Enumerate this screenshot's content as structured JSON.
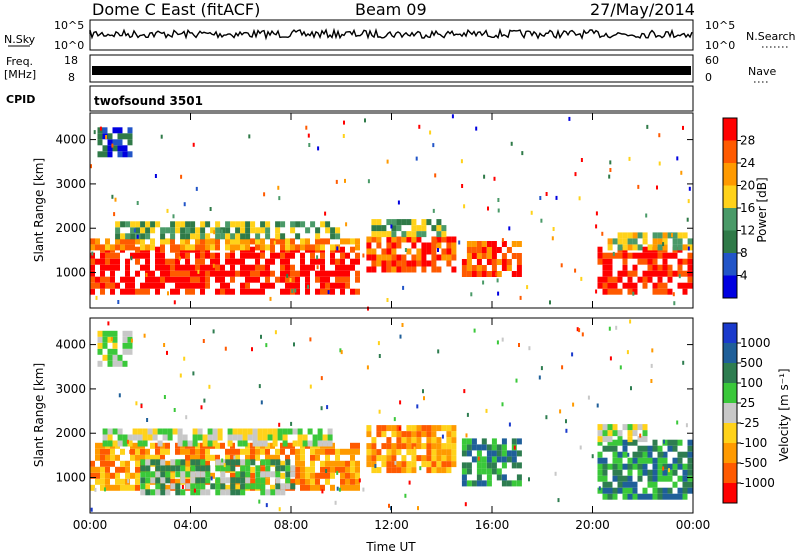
{
  "header": {
    "station": "Dome C East (fitACF)",
    "beam": "Beam 09",
    "date": "27/May/2014"
  },
  "top_panels": {
    "nsky_label": "N.Sky",
    "nsky_ticks": [
      "10^5",
      "10^0"
    ],
    "nsearch_label": "N.Search",
    "nsearch_ticks": [
      "10^5",
      "10^0"
    ],
    "freq_label": "Freq.",
    "freq_unit": "[MHz]",
    "freq_ticks": [
      "18",
      "8"
    ],
    "nave_label": "Nave",
    "nave_ticks": [
      "60",
      "0"
    ],
    "cpid_label": "CPID",
    "cpid_value": "twofsound 3501"
  },
  "colors": {
    "power": [
      "#0000e0",
      "#2255c8",
      "#2f7a48",
      "#4a9a68",
      "#ffd21a",
      "#ff9a00",
      "#ff5a00",
      "#ff0000"
    ],
    "velocity": [
      "#1a3acc",
      "#1f5f99",
      "#2e7d50",
      "#3ac83a",
      "#c8c8c8",
      "#ffd21a",
      "#ff9a00",
      "#ff5a00",
      "#ff0000"
    ]
  },
  "chart_data": [
    {
      "type": "heatmap",
      "panel": "power",
      "ylabel": "Slant Range [km]",
      "y_ticks": [
        1000,
        2000,
        3000,
        4000
      ],
      "ylim": [
        200,
        4600
      ],
      "x_ticks": [
        "00:00",
        "04:00",
        "08:00",
        "12:00",
        "16:00",
        "20:00",
        "00:00"
      ],
      "xlim_hours": [
        0,
        24
      ],
      "colorbar_label": "Power [dB]",
      "colorbar_ticks": [
        "4",
        "8",
        "12",
        "16",
        "20",
        "24",
        "28"
      ],
      "regions": [
        {
          "t0": 0.0,
          "t1": 10.6,
          "r0": 500,
          "r1": 1500,
          "level": 7
        },
        {
          "t0": 0.0,
          "t1": 10.6,
          "r0": 1500,
          "r1": 1750,
          "level": 5
        },
        {
          "t0": 1.0,
          "t1": 10.0,
          "r0": 1750,
          "r1": 2100,
          "level": 3
        },
        {
          "t0": 0.3,
          "t1": 1.6,
          "r0": 3600,
          "r1": 4200,
          "level": 1
        },
        {
          "t0": 11.0,
          "t1": 14.5,
          "r0": 1000,
          "r1": 1800,
          "level": 6
        },
        {
          "t0": 11.2,
          "t1": 14.0,
          "r0": 1800,
          "r1": 2100,
          "level": 3
        },
        {
          "t0": 14.8,
          "t1": 17.0,
          "r0": 900,
          "r1": 1700,
          "level": 6
        },
        {
          "t0": 20.2,
          "t1": 24.0,
          "r0": 500,
          "r1": 1500,
          "level": 7
        },
        {
          "t0": 20.6,
          "t1": 24.0,
          "r0": 1500,
          "r1": 1900,
          "level": 4
        }
      ]
    },
    {
      "type": "heatmap",
      "panel": "velocity",
      "ylabel": "Slant Range [km]",
      "y_ticks": [
        1000,
        2000,
        3000,
        4000
      ],
      "ylim": [
        200,
        4600
      ],
      "x_ticks": [
        "00:00",
        "04:00",
        "08:00",
        "12:00",
        "16:00",
        "20:00",
        "00:00"
      ],
      "xlim_hours": [
        0,
        24
      ],
      "xlabel": "Time UT",
      "colorbar_label": "Velocity [m s⁻¹]",
      "colorbar_ticks": [
        "1000",
        "500",
        "100",
        "25",
        "-25",
        "-100",
        "-500",
        "-1000"
      ],
      "regions": [
        {
          "t0": 0.0,
          "t1": 10.6,
          "r0": 700,
          "r1": 1700,
          "level": 6
        },
        {
          "t0": 2.0,
          "t1": 8.0,
          "r0": 600,
          "r1": 1400,
          "level": 3
        },
        {
          "t0": 0.5,
          "t1": 9.5,
          "r0": 1700,
          "r1": 2100,
          "level": 4
        },
        {
          "t0": 0.3,
          "t1": 1.5,
          "r0": 3500,
          "r1": 4200,
          "level": 4
        },
        {
          "t0": 11.0,
          "t1": 14.5,
          "r0": 1100,
          "r1": 2100,
          "level": 6
        },
        {
          "t0": 14.8,
          "t1": 17.0,
          "r0": 800,
          "r1": 1800,
          "level": 2
        },
        {
          "t0": 20.2,
          "t1": 24.0,
          "r0": 500,
          "r1": 1800,
          "level": 2
        },
        {
          "t0": 20.2,
          "t1": 22.0,
          "r0": 1800,
          "r1": 2100,
          "level": 4
        }
      ]
    }
  ]
}
